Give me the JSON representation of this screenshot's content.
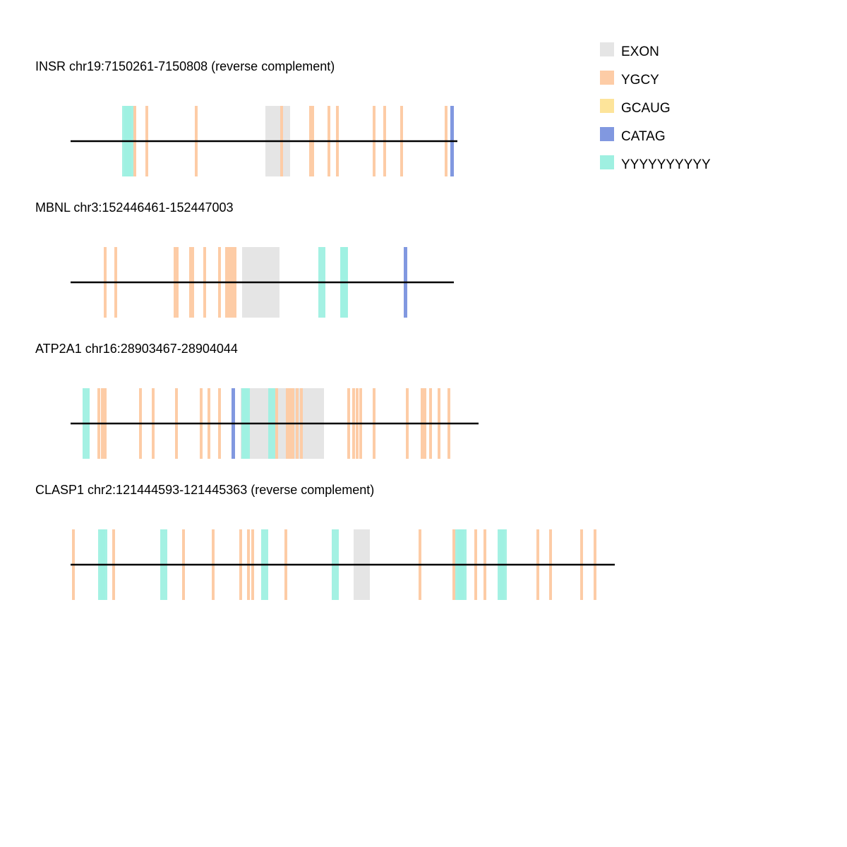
{
  "colors": {
    "EXON": "#e5e5e5",
    "YGCY": "#fdcca6",
    "GCAUG": "#fde49a",
    "CATAG": "#8198e0",
    "YYYYYYYYYY": "#9ff0e1",
    "line": "#000000"
  },
  "legend": [
    {
      "key": "EXON",
      "label": "EXON"
    },
    {
      "key": "YGCY",
      "label": "YGCY"
    },
    {
      "key": "GCAUG",
      "label": "GCAUG"
    },
    {
      "key": "CATAG",
      "label": "CATAG"
    },
    {
      "key": "YYYYYYYYYY",
      "label": "YYYYYYYYYY"
    }
  ],
  "tracks": [
    {
      "label": "INSR chr19:7150261-7150808 (reverse complement)",
      "length": 548,
      "features": [
        {
          "type": "YYYYYYYYYY",
          "start": 73,
          "end": 83
        },
        {
          "type": "YYYYYYYYYY",
          "start": 76,
          "end": 86
        },
        {
          "type": "YYYYYYYYYY",
          "start": 79,
          "end": 89
        },
        {
          "type": "YGCY",
          "start": 89,
          "end": 93
        },
        {
          "type": "YGCY",
          "start": 106,
          "end": 110
        },
        {
          "type": "YGCY",
          "start": 176,
          "end": 180
        },
        {
          "type": "EXON",
          "start": 276,
          "end": 311
        },
        {
          "type": "YGCY",
          "start": 297,
          "end": 301
        },
        {
          "type": "YGCY",
          "start": 338,
          "end": 342
        },
        {
          "type": "YGCY",
          "start": 341,
          "end": 345
        },
        {
          "type": "YGCY",
          "start": 364,
          "end": 368
        },
        {
          "type": "YGCY",
          "start": 376,
          "end": 380
        },
        {
          "type": "YGCY",
          "start": 428,
          "end": 432
        },
        {
          "type": "YGCY",
          "start": 443,
          "end": 447
        },
        {
          "type": "YGCY",
          "start": 467,
          "end": 471
        },
        {
          "type": "YGCY",
          "start": 530,
          "end": 534
        },
        {
          "type": "CATAG",
          "start": 538,
          "end": 543
        }
      ]
    },
    {
      "label": "MBNL chr3:152446461-152447003",
      "length": 543,
      "features": [
        {
          "type": "YGCY",
          "start": 47,
          "end": 51
        },
        {
          "type": "YGCY",
          "start": 62,
          "end": 66
        },
        {
          "type": "YGCY",
          "start": 146,
          "end": 150
        },
        {
          "type": "YGCY",
          "start": 149,
          "end": 153
        },
        {
          "type": "YGCY",
          "start": 168,
          "end": 172
        },
        {
          "type": "YGCY",
          "start": 171,
          "end": 175
        },
        {
          "type": "YGCY",
          "start": 188,
          "end": 192
        },
        {
          "type": "YGCY",
          "start": 209,
          "end": 213
        },
        {
          "type": "YGCY",
          "start": 219,
          "end": 223
        },
        {
          "type": "YGCY",
          "start": 223,
          "end": 227
        },
        {
          "type": "YGCY",
          "start": 227,
          "end": 231
        },
        {
          "type": "YGCY",
          "start": 231,
          "end": 235
        },
        {
          "type": "EXON",
          "start": 243,
          "end": 296
        },
        {
          "type": "YYYYYYYYYY",
          "start": 351,
          "end": 361
        },
        {
          "type": "YYYYYYYYYY",
          "start": 382,
          "end": 392
        },
        {
          "type": "YYYYYYYYYY",
          "start": 383,
          "end": 393
        },
        {
          "type": "CATAG",
          "start": 472,
          "end": 477
        }
      ]
    },
    {
      "label": "ATP2A1 chr16:28903467-28904044",
      "length": 578,
      "features": [
        {
          "type": "YYYYYYYYYY",
          "start": 17,
          "end": 27
        },
        {
          "type": "YGCY",
          "start": 38,
          "end": 42
        },
        {
          "type": "YGCY",
          "start": 43,
          "end": 47
        },
        {
          "type": "YGCY",
          "start": 47,
          "end": 51
        },
        {
          "type": "YGCY",
          "start": 97,
          "end": 101
        },
        {
          "type": "YGCY",
          "start": 115,
          "end": 119
        },
        {
          "type": "YGCY",
          "start": 148,
          "end": 152
        },
        {
          "type": "YGCY",
          "start": 183,
          "end": 187
        },
        {
          "type": "YGCY",
          "start": 194,
          "end": 198
        },
        {
          "type": "YGCY",
          "start": 209,
          "end": 213
        },
        {
          "type": "CATAG",
          "start": 228,
          "end": 233
        },
        {
          "type": "EXON",
          "start": 241,
          "end": 359
        },
        {
          "type": "YYYYYYYYYY",
          "start": 242,
          "end": 252
        },
        {
          "type": "YYYYYYYYYY",
          "start": 244,
          "end": 254
        },
        {
          "type": "YYYYYYYYYY",
          "start": 280,
          "end": 290
        },
        {
          "type": "YGCY",
          "start": 290,
          "end": 294
        },
        {
          "type": "YGCY",
          "start": 305,
          "end": 309
        },
        {
          "type": "YGCY",
          "start": 309,
          "end": 313
        },
        {
          "type": "YGCY",
          "start": 313,
          "end": 317
        },
        {
          "type": "YGCY",
          "start": 319,
          "end": 323
        },
        {
          "type": "YGCY",
          "start": 325,
          "end": 329
        },
        {
          "type": "YGCY",
          "start": 392,
          "end": 396
        },
        {
          "type": "YGCY",
          "start": 399,
          "end": 403
        },
        {
          "type": "YGCY",
          "start": 404,
          "end": 408
        },
        {
          "type": "YGCY",
          "start": 409,
          "end": 413
        },
        {
          "type": "YGCY",
          "start": 428,
          "end": 432
        },
        {
          "type": "YGCY",
          "start": 475,
          "end": 479
        },
        {
          "type": "YGCY",
          "start": 496,
          "end": 500
        },
        {
          "type": "YGCY",
          "start": 500,
          "end": 504
        },
        {
          "type": "YGCY",
          "start": 508,
          "end": 512
        },
        {
          "type": "YGCY",
          "start": 520,
          "end": 524
        },
        {
          "type": "YGCY",
          "start": 534,
          "end": 538
        }
      ]
    },
    {
      "label": "CLASP1 chr2:121444593-121445363 (reverse complement)",
      "length": 771,
      "features": [
        {
          "type": "YGCY",
          "start": 2,
          "end": 6
        },
        {
          "type": "YYYYYYYYYY",
          "start": 39,
          "end": 49
        },
        {
          "type": "YYYYYYYYYY",
          "start": 42,
          "end": 52
        },
        {
          "type": "YGCY",
          "start": 59,
          "end": 63
        },
        {
          "type": "YYYYYYYYYY",
          "start": 127,
          "end": 137
        },
        {
          "type": "YGCY",
          "start": 158,
          "end": 162
        },
        {
          "type": "YGCY",
          "start": 200,
          "end": 204
        },
        {
          "type": "YGCY",
          "start": 239,
          "end": 243
        },
        {
          "type": "YGCY",
          "start": 250,
          "end": 254
        },
        {
          "type": "YGCY",
          "start": 256,
          "end": 260
        },
        {
          "type": "YYYYYYYYYY",
          "start": 270,
          "end": 280
        },
        {
          "type": "YGCY",
          "start": 303,
          "end": 307
        },
        {
          "type": "YYYYYYYYYY",
          "start": 370,
          "end": 380
        },
        {
          "type": "EXON",
          "start": 401,
          "end": 424
        },
        {
          "type": "YGCY",
          "start": 493,
          "end": 497
        },
        {
          "type": "YGCY",
          "start": 541,
          "end": 545
        },
        {
          "type": "YYYYYYYYYY",
          "start": 545,
          "end": 555
        },
        {
          "type": "YYYYYYYYYY",
          "start": 548,
          "end": 558
        },
        {
          "type": "YYYYYYYYYY",
          "start": 551,
          "end": 561
        },
        {
          "type": "YGCY",
          "start": 572,
          "end": 576
        },
        {
          "type": "YGCY",
          "start": 585,
          "end": 589
        },
        {
          "type": "YYYYYYYYYY",
          "start": 605,
          "end": 615
        },
        {
          "type": "YYYYYYYYYY",
          "start": 608,
          "end": 618
        },
        {
          "type": "YGCY",
          "start": 660,
          "end": 664
        },
        {
          "type": "YGCY",
          "start": 678,
          "end": 682
        },
        {
          "type": "YGCY",
          "start": 722,
          "end": 726
        },
        {
          "type": "YGCY",
          "start": 741,
          "end": 745
        }
      ]
    }
  ]
}
